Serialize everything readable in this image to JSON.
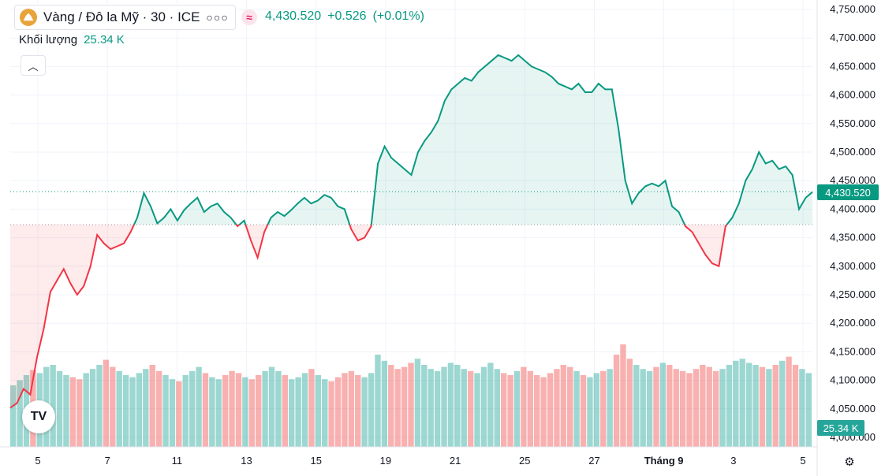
{
  "header": {
    "symbol_title": "Vàng / Đô la Mỹ · 30 · ICE",
    "more_icon": "more-dots-icon",
    "price": "4,430.520",
    "change": "+0.526",
    "change_pct": "(+0.01%)"
  },
  "volume": {
    "label": "Khối lượng",
    "value": "25.34 K",
    "tag": "25.34 K"
  },
  "price_tag": "4,430.520",
  "logo_text": "TV",
  "colors": {
    "up": "#089981",
    "down": "#f23645",
    "vol_up": "#26a69a",
    "vol_down": "#ef5350"
  },
  "chart_data": {
    "type": "line",
    "baseline_style": true,
    "baseline": 4373,
    "last_price_line": 4430.52,
    "ylim": [
      4000,
      4750
    ],
    "y_ticks": [
      "4,000.000",
      "4,050.000",
      "4,100.000",
      "4,150.000",
      "4,200.000",
      "4,250.000",
      "4,300.000",
      "4,350.000",
      "4,400.000",
      "4,450.000",
      "4,500.000",
      "4,550.000",
      "4,600.000",
      "4,650.000",
      "4,700.000",
      "4,750.000"
    ],
    "x_ticks": [
      "5",
      "7",
      "11",
      "13",
      "15",
      "19",
      "21",
      "25",
      "27",
      "Tháng 9",
      "3",
      "5"
    ],
    "series": [
      {
        "values": [
          4052,
          4060,
          4085,
          4075,
          4140,
          4190,
          4255,
          4275,
          4295,
          4270,
          4250,
          4265,
          4300,
          4355,
          4340,
          4330,
          4335,
          4340,
          4360,
          4385,
          4428,
          4405,
          4375,
          4385,
          4400,
          4380,
          4398,
          4410,
          4420,
          4395,
          4405,
          4410,
          4395,
          4385,
          4370,
          4380,
          4345,
          4315,
          4360,
          4385,
          4395,
          4388,
          4398,
          4410,
          4420,
          4410,
          4415,
          4425,
          4420,
          4405,
          4400,
          4365,
          4345,
          4350,
          4370,
          4480,
          4510,
          4490,
          4480,
          4470,
          4460,
          4500,
          4520,
          4535,
          4555,
          4590,
          4610,
          4620,
          4630,
          4625,
          4640,
          4650,
          4660,
          4670,
          4665,
          4660,
          4670,
          4660,
          4650,
          4645,
          4640,
          4632,
          4620,
          4615,
          4610,
          4620,
          4605,
          4605,
          4620,
          4610,
          4610,
          4540,
          4450,
          4410,
          4428,
          4440,
          4445,
          4440,
          4450,
          4405,
          4395,
          4370,
          4360,
          4340,
          4320,
          4305,
          4300,
          4370,
          4385,
          4410,
          4450,
          4470,
          4500,
          4480,
          4485,
          4470,
          4475,
          4460,
          4400,
          4420,
          4430
        ]
      }
    ],
    "volume": [
      60,
      65,
      70,
      75,
      72,
      78,
      80,
      74,
      70,
      68,
      66,
      72,
      76,
      80,
      85,
      78,
      74,
      70,
      68,
      72,
      76,
      80,
      74,
      70,
      66,
      64,
      70,
      74,
      78,
      72,
      68,
      66,
      70,
      74,
      72,
      68,
      66,
      70,
      74,
      78,
      74,
      70,
      66,
      68,
      72,
      76,
      70,
      66,
      64,
      68,
      72,
      74,
      70,
      68,
      72,
      90,
      84,
      80,
      76,
      78,
      82,
      86,
      80,
      76,
      74,
      78,
      82,
      80,
      76,
      74,
      72,
      78,
      82,
      76,
      72,
      70,
      74,
      78,
      74,
      70,
      68,
      72,
      76,
      80,
      78,
      74,
      70,
      68,
      72,
      74,
      76,
      90,
      100,
      86,
      80,
      76,
      74,
      78,
      82,
      80,
      76,
      74,
      72,
      76,
      80,
      78,
      74,
      76,
      80,
      84,
      86,
      82,
      80,
      78,
      76,
      80,
      84,
      88,
      80,
      76,
      72
    ]
  }
}
